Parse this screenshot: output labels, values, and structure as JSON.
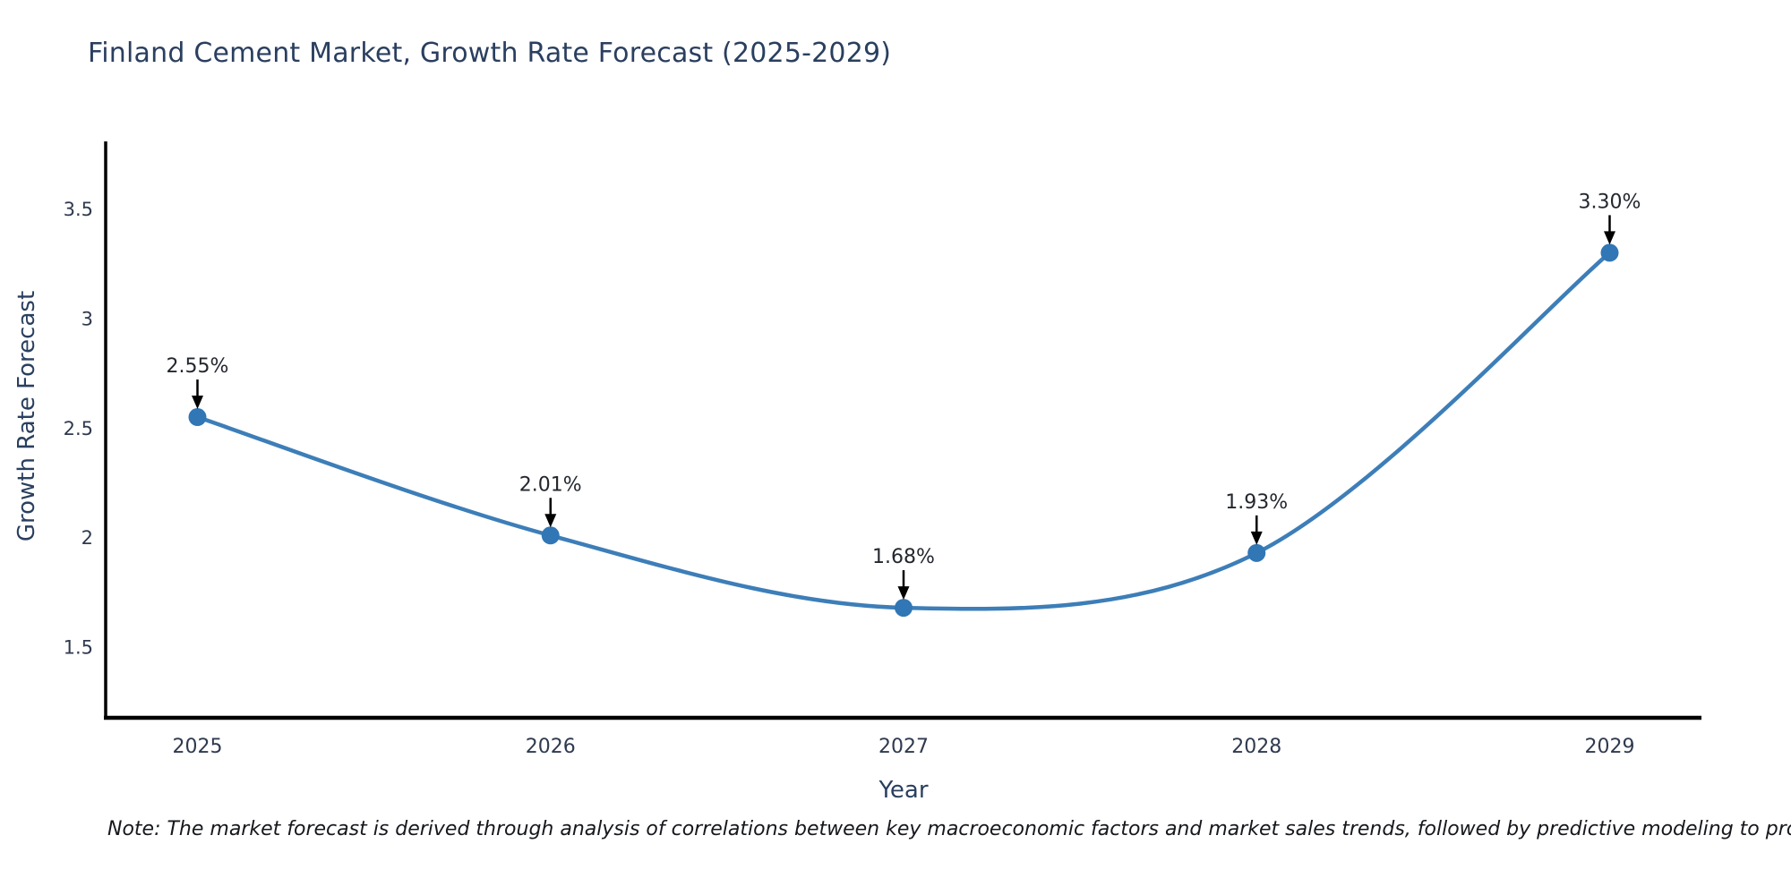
{
  "title": "Finland Cement Market, Growth Rate Forecast (2025-2029)",
  "note": "Note: The market forecast is derived through analysis of correlations between key macroeconomic factors and market sales trends, followed by predictive modeling to project future sales",
  "colors": {
    "title_text": "#2a3f5f",
    "axis_line": "#000000",
    "line": "#3d7eb8",
    "marker": "#3176b5",
    "arrow": "#000000",
    "tick_text": "#2f3a4f",
    "annotation_text": "#23272e"
  },
  "chart_data": {
    "type": "line",
    "title": "Finland Cement Market, Growth Rate Forecast (2025-2029)",
    "xlabel": "Year",
    "ylabel": "Growth Rate Forecast",
    "x": [
      2025,
      2026,
      2027,
      2028,
      2029
    ],
    "values": [
      2.55,
      2.01,
      1.68,
      1.93,
      3.3
    ],
    "point_labels": [
      "2.55%",
      "2.01%",
      "1.68%",
      "1.93%",
      "3.30%"
    ],
    "xtick_labels": [
      "2025",
      "2026",
      "2027",
      "2028",
      "2029"
    ],
    "ytick_values": [
      1.5,
      2,
      2.5,
      3,
      3.5
    ],
    "ytick_labels": [
      "1.5",
      "2",
      "2.5",
      "3",
      "3.5"
    ],
    "xlim": [
      2024.74,
      2029.26
    ],
    "ylim": [
      1.178,
      3.808
    ],
    "grid": false,
    "legend": "none",
    "curve": "smooth-spline",
    "annotation_style": "value-above-with-down-arrow"
  }
}
